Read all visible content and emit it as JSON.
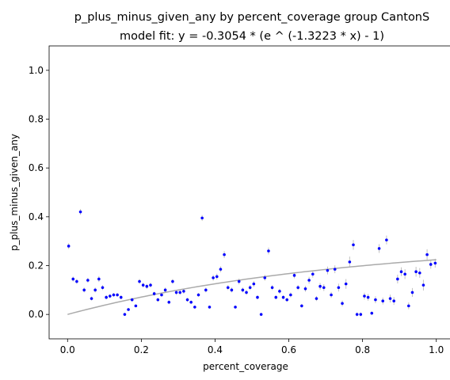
{
  "chart_data": {
    "type": "scatter",
    "title": "p_plus_minus_given_any by percent_coverage group CantonS",
    "subtitle": "model fit: y = -0.3054 * (e ^ (-1.3223 * x) - 1)",
    "xlabel": "percent_coverage",
    "ylabel": "p_plus_minus_given_any",
    "xlim": [
      -0.05,
      1.05
    ],
    "ylim": [
      -0.1,
      1.1
    ],
    "x_ticks": [
      0.0,
      0.2,
      0.4,
      0.6,
      0.8,
      1.0
    ],
    "x_tick_labels": [
      "0.0",
      "0.2",
      "0.4",
      "0.6",
      "0.8",
      "1.0"
    ],
    "y_ticks": [
      0.0,
      0.2,
      0.4,
      0.6,
      0.8,
      1.0
    ],
    "y_tick_labels": [
      "0.0",
      "0.2",
      "0.4",
      "0.6",
      "0.8",
      "1.0"
    ],
    "grid": false,
    "point_color": "#0000ff",
    "errorbar_color": "#c0c0c0",
    "fit_color": "#aaaaaa",
    "fit": {
      "a": -0.3054,
      "b": -1.3223
    },
    "x": [
      0.003,
      0.015,
      0.025,
      0.035,
      0.045,
      0.055,
      0.065,
      0.075,
      0.085,
      0.095,
      0.105,
      0.115,
      0.125,
      0.135,
      0.145,
      0.155,
      0.165,
      0.175,
      0.185,
      0.195,
      0.205,
      0.215,
      0.225,
      0.235,
      0.245,
      0.255,
      0.265,
      0.275,
      0.285,
      0.295,
      0.305,
      0.315,
      0.325,
      0.335,
      0.345,
      0.355,
      0.365,
      0.375,
      0.385,
      0.395,
      0.405,
      0.415,
      0.425,
      0.435,
      0.445,
      0.455,
      0.465,
      0.475,
      0.485,
      0.495,
      0.505,
      0.515,
      0.525,
      0.535,
      0.545,
      0.555,
      0.565,
      0.575,
      0.585,
      0.595,
      0.605,
      0.615,
      0.625,
      0.635,
      0.645,
      0.655,
      0.665,
      0.675,
      0.685,
      0.695,
      0.705,
      0.715,
      0.725,
      0.735,
      0.745,
      0.755,
      0.765,
      0.775,
      0.785,
      0.795,
      0.805,
      0.815,
      0.825,
      0.835,
      0.845,
      0.855,
      0.865,
      0.875,
      0.885,
      0.895,
      0.905,
      0.915,
      0.925,
      0.935,
      0.945,
      0.955,
      0.965,
      0.975,
      0.985,
      0.997
    ],
    "y": [
      0.28,
      0.145,
      0.135,
      0.42,
      0.1,
      0.14,
      0.065,
      0.1,
      0.145,
      0.11,
      0.07,
      0.075,
      0.08,
      0.08,
      0.07,
      0.0,
      0.02,
      0.06,
      0.035,
      0.135,
      0.12,
      0.115,
      0.12,
      0.085,
      0.06,
      0.08,
      0.1,
      0.05,
      0.135,
      0.09,
      0.09,
      0.095,
      0.06,
      0.05,
      0.03,
      0.08,
      0.395,
      0.1,
      0.03,
      0.15,
      0.155,
      0.185,
      0.245,
      0.11,
      0.1,
      0.03,
      0.135,
      0.1,
      0.09,
      0.11,
      0.125,
      0.07,
      0.0,
      0.15,
      0.26,
      0.11,
      0.07,
      0.095,
      0.07,
      0.06,
      0.08,
      0.16,
      0.11,
      0.035,
      0.105,
      0.14,
      0.165,
      0.065,
      0.115,
      0.11,
      0.18,
      0.08,
      0.185,
      0.11,
      0.045,
      0.125,
      0.215,
      0.285,
      0.0,
      0.0,
      0.075,
      0.07,
      0.005,
      0.06,
      0.27,
      0.055,
      0.305,
      0.065,
      0.055,
      0.145,
      0.175,
      0.165,
      0.035,
      0.09,
      0.175,
      0.17,
      0.12,
      0.245,
      0.205,
      0.21
    ],
    "err": [
      0.012,
      0.01,
      0.01,
      0.012,
      0.01,
      0.01,
      0.008,
      0.01,
      0.012,
      0.01,
      0.008,
      0.008,
      0.008,
      0.008,
      0.008,
      0.006,
      0.006,
      0.008,
      0.006,
      0.01,
      0.01,
      0.01,
      0.01,
      0.008,
      0.008,
      0.008,
      0.01,
      0.008,
      0.01,
      0.01,
      0.01,
      0.01,
      0.008,
      0.008,
      0.006,
      0.008,
      0.012,
      0.01,
      0.006,
      0.012,
      0.012,
      0.012,
      0.014,
      0.01,
      0.01,
      0.006,
      0.012,
      0.01,
      0.01,
      0.01,
      0.012,
      0.008,
      0.006,
      0.012,
      0.014,
      0.01,
      0.008,
      0.01,
      0.008,
      0.008,
      0.01,
      0.012,
      0.01,
      0.008,
      0.012,
      0.014,
      0.014,
      0.01,
      0.014,
      0.014,
      0.016,
      0.012,
      0.016,
      0.016,
      0.012,
      0.02,
      0.022,
      0.02,
      0.008,
      0.008,
      0.014,
      0.014,
      0.008,
      0.014,
      0.018,
      0.014,
      0.018,
      0.016,
      0.016,
      0.018,
      0.018,
      0.02,
      0.014,
      0.018,
      0.02,
      0.02,
      0.022,
      0.022,
      0.018,
      0.018
    ]
  }
}
